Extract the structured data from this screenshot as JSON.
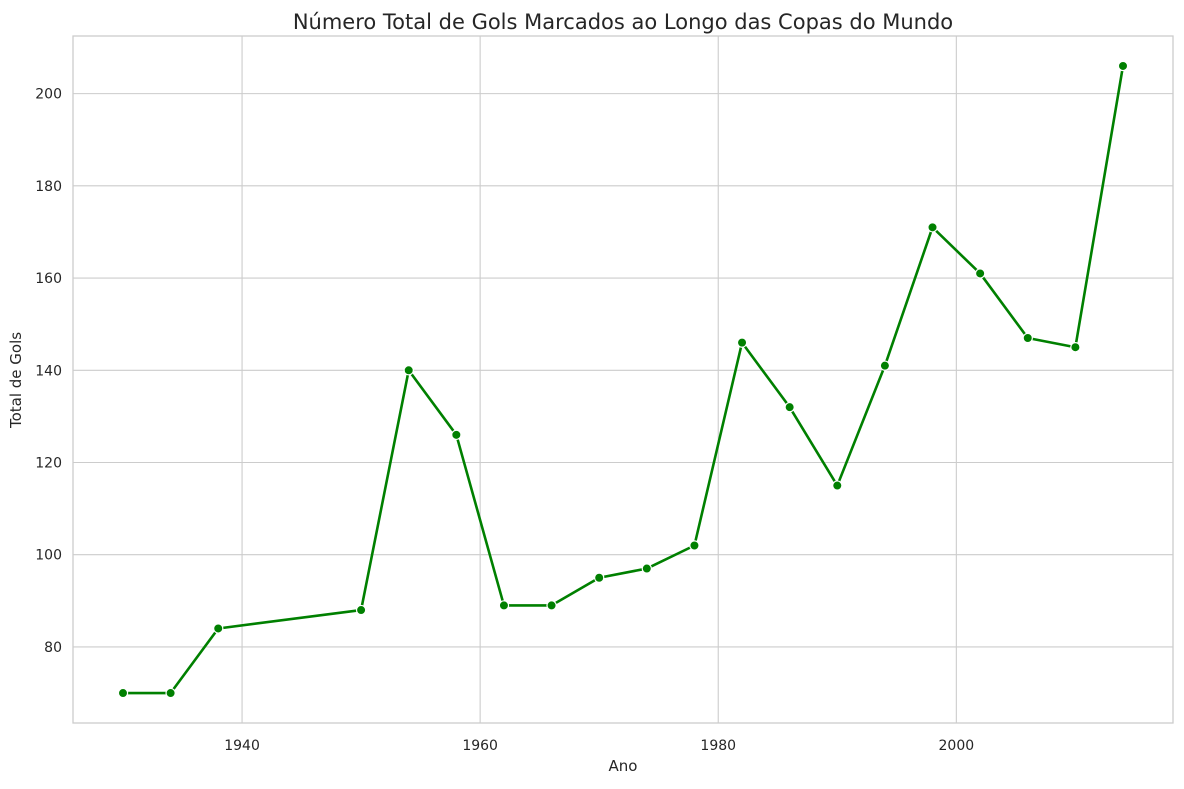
{
  "chart_data": {
    "type": "line",
    "title": "Número Total de Gols Marcados ao Longo das Copas do Mundo",
    "xlabel": "Ano",
    "ylabel": "Total de Gols",
    "xlim": [
      1925.8,
      2018.2
    ],
    "ylim": [
      63.5,
      212.5
    ],
    "x_ticks": [
      1940,
      1960,
      1980,
      2000
    ],
    "y_ticks": [
      80,
      100,
      120,
      140,
      160,
      180,
      200
    ],
    "grid": true,
    "legend": "none",
    "series": [
      {
        "color": "#008000",
        "marker": "circle",
        "points": [
          {
            "x": 1930,
            "y": 70
          },
          {
            "x": 1934,
            "y": 70
          },
          {
            "x": 1938,
            "y": 84
          },
          {
            "x": 1950,
            "y": 88
          },
          {
            "x": 1954,
            "y": 140
          },
          {
            "x": 1958,
            "y": 126
          },
          {
            "x": 1962,
            "y": 89
          },
          {
            "x": 1966,
            "y": 89
          },
          {
            "x": 1970,
            "y": 95
          },
          {
            "x": 1974,
            "y": 97
          },
          {
            "x": 1978,
            "y": 102
          },
          {
            "x": 1982,
            "y": 146
          },
          {
            "x": 1986,
            "y": 132
          },
          {
            "x": 1990,
            "y": 115
          },
          {
            "x": 1994,
            "y": 141
          },
          {
            "x": 1998,
            "y": 171
          },
          {
            "x": 2002,
            "y": 161
          },
          {
            "x": 2006,
            "y": 147
          },
          {
            "x": 2010,
            "y": 145
          },
          {
            "x": 2014,
            "y": 206
          }
        ]
      }
    ]
  }
}
